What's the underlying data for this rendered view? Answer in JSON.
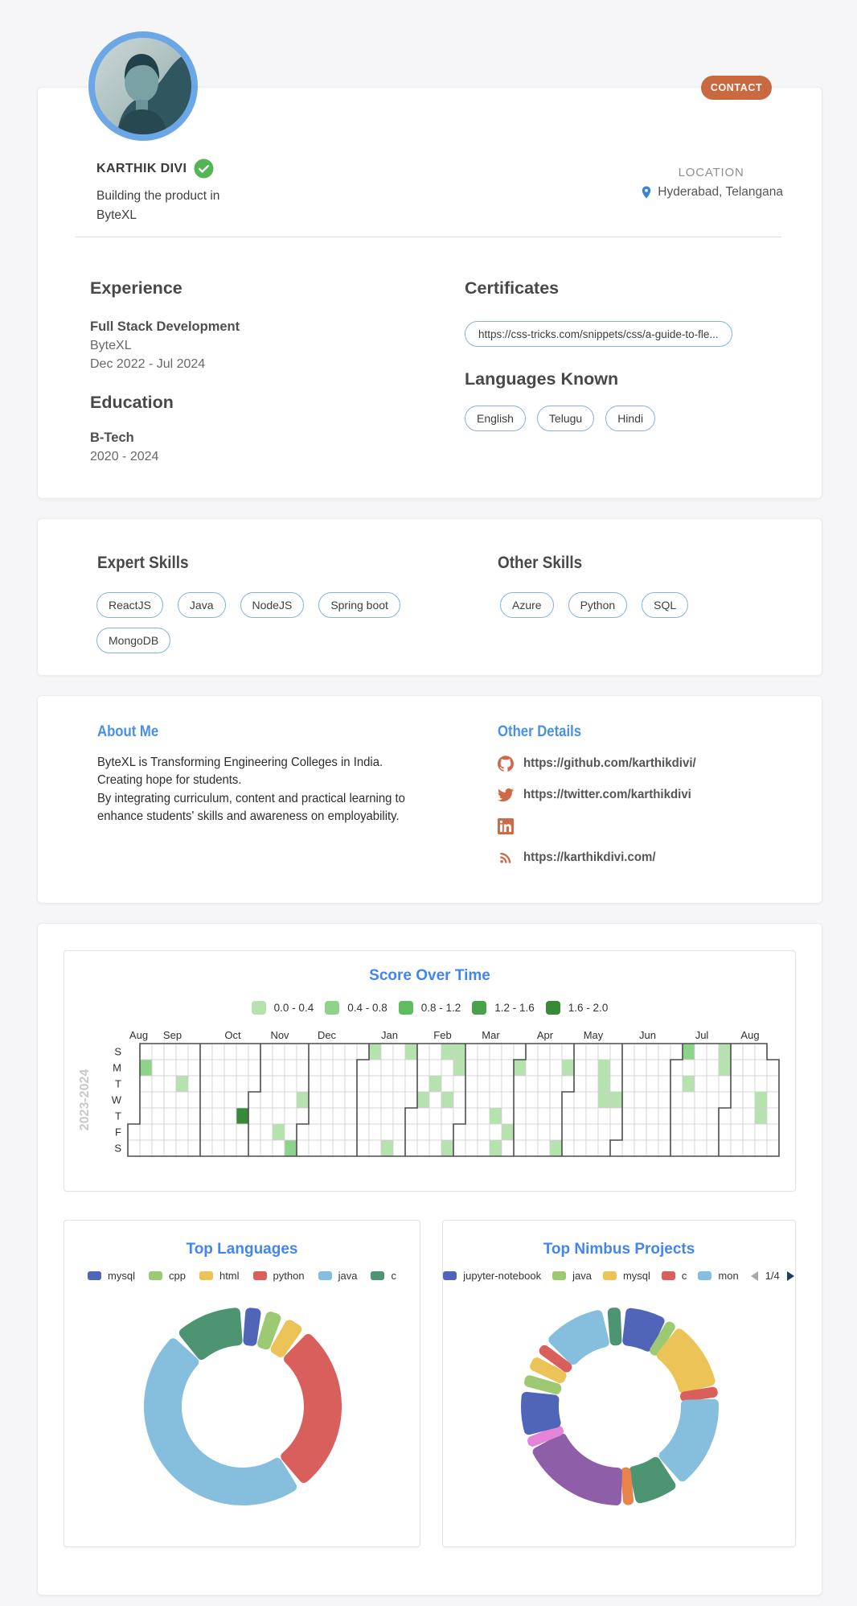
{
  "profile": {
    "name": "KARTHIK DIVI",
    "contact_label": "CONTACT",
    "tagline_line1": "Building the product in",
    "tagline_line2": "ByteXL",
    "location_label": "LOCATION",
    "location": "Hyderabad, Telangana"
  },
  "experience": {
    "title": "Experience",
    "role": "Full Stack Development",
    "company": "ByteXL",
    "period": "Dec 2022 - Jul 2024"
  },
  "education": {
    "title": "Education",
    "degree": "B-Tech",
    "period": "2020 - 2024"
  },
  "certificates": {
    "title": "Certificates",
    "url": "https://css-tricks.com/snippets/css/a-guide-to-fle..."
  },
  "languages": {
    "title": "Languages Known",
    "items": [
      "English",
      "Telugu",
      "Hindi"
    ]
  },
  "expert_skills": {
    "title": "Expert Skills",
    "items": [
      "ReactJS",
      "Java",
      "NodeJS",
      "Spring boot",
      "MongoDB"
    ]
  },
  "other_skills": {
    "title": "Other Skills",
    "items": [
      "Azure",
      "Python",
      "SQL"
    ]
  },
  "about": {
    "title": "About Me",
    "lines": [
      "ByteXL is Transforming Engineering Colleges in India.",
      "Creating hope for students.",
      "By integrating curriculum, content and practical learning to",
      "enhance students' skills and awareness on employability."
    ]
  },
  "other_details": {
    "title": "Other Details",
    "links": [
      {
        "icon": "github",
        "label": "https://github.com/karthikdivi/"
      },
      {
        "icon": "twitter",
        "label": "https://twitter.com/karthikdivi"
      },
      {
        "icon": "linkedin",
        "label": ""
      },
      {
        "icon": "rss",
        "label": "https://karthikdivi.com/"
      }
    ]
  },
  "chart_data": [
    {
      "type": "heatmap",
      "title": "Score Over Time",
      "year_label": "2023-2024",
      "legend": [
        {
          "label": "0.0 - 0.4",
          "color": "#b5e2af"
        },
        {
          "label": "0.4 - 0.8",
          "color": "#8ed38a"
        },
        {
          "label": "0.8 - 1.2",
          "color": "#5fbc5f"
        },
        {
          "label": "1.2 - 1.6",
          "color": "#48a348"
        },
        {
          "label": "1.6 - 2.0",
          "color": "#388938"
        }
      ],
      "day_labels": [
        "S",
        "M",
        "T",
        "W",
        "T",
        "F",
        "S"
      ],
      "weeks": 54,
      "month_labels": [
        {
          "label": "Aug",
          "week": 0.9
        },
        {
          "label": "Sep",
          "week": 3.7
        },
        {
          "label": "Oct",
          "week": 8.7
        },
        {
          "label": "Nov",
          "week": 12.6
        },
        {
          "label": "Dec",
          "week": 16.5
        },
        {
          "label": "Jan",
          "week": 21.7
        },
        {
          "label": "Feb",
          "week": 26.1
        },
        {
          "label": "Mar",
          "week": 30.1
        },
        {
          "label": "Apr",
          "week": 34.6
        },
        {
          "label": "May",
          "week": 38.6
        },
        {
          "label": "Jun",
          "week": 43.1
        },
        {
          "label": "Jul",
          "week": 47.6
        },
        {
          "label": "Aug",
          "week": 51.6
        }
      ],
      "month_boundaries": [
        [
          6,
          0
        ],
        [
          11,
          3
        ],
        [
          15,
          5
        ],
        [
          20,
          1
        ],
        [
          24,
          4
        ],
        [
          28,
          5
        ],
        [
          33,
          1
        ],
        [
          37,
          3
        ],
        [
          41,
          6
        ],
        [
          46,
          1
        ],
        [
          50,
          4
        ]
      ],
      "excluded_cells": [
        [
          0,
          0
        ],
        [
          0,
          1
        ],
        [
          0,
          2
        ],
        [
          0,
          3
        ],
        [
          0,
          4
        ],
        [
          53,
          0
        ]
      ],
      "cells": [
        [
          1,
          1,
          2
        ],
        [
          4,
          2,
          1
        ],
        [
          9,
          4,
          5
        ],
        [
          12,
          5,
          1
        ],
        [
          13,
          6,
          2
        ],
        [
          14,
          3,
          1
        ],
        [
          20,
          0,
          1
        ],
        [
          21,
          6,
          1
        ],
        [
          23,
          0,
          1
        ],
        [
          24,
          3,
          1
        ],
        [
          25,
          2,
          1
        ],
        [
          26,
          0,
          1
        ],
        [
          26,
          3,
          1
        ],
        [
          26,
          6,
          1
        ],
        [
          27,
          0,
          1
        ],
        [
          27,
          1,
          1
        ],
        [
          30,
          4,
          1
        ],
        [
          30,
          6,
          1
        ],
        [
          31,
          5,
          1
        ],
        [
          32,
          1,
          1
        ],
        [
          35,
          6,
          1
        ],
        [
          36,
          1,
          1
        ],
        [
          39,
          1,
          1
        ],
        [
          39,
          2,
          1
        ],
        [
          39,
          3,
          1
        ],
        [
          40,
          3,
          1
        ],
        [
          46,
          0,
          2
        ],
        [
          46,
          2,
          1
        ],
        [
          49,
          0,
          1
        ],
        [
          49,
          1,
          1
        ],
        [
          52,
          3,
          1
        ],
        [
          52,
          4,
          1
        ]
      ]
    },
    {
      "type": "donut",
      "title": "Top Languages",
      "series": [
        {
          "name": "mysql",
          "value": 3.5,
          "color": "#5065b8"
        },
        {
          "name": "cpp",
          "value": 3.5,
          "color": "#9dc973"
        },
        {
          "name": "html",
          "value": 4,
          "color": "#ecc356"
        },
        {
          "name": "python",
          "value": 29,
          "color": "#d95f5c"
        },
        {
          "name": "java",
          "value": 48,
          "color": "#85bfdd"
        },
        {
          "name": "c",
          "value": 12,
          "color": "#4c9472"
        }
      ]
    },
    {
      "type": "donut",
      "title": "Top Nimbus Projects",
      "pagination": "1/4",
      "legend_items": [
        {
          "name": "jupyter-notebook",
          "color": "#5065b8"
        },
        {
          "name": "java",
          "color": "#9dc973"
        },
        {
          "name": "mysql",
          "color": "#ecc356"
        },
        {
          "name": "c",
          "color": "#d95f5c"
        },
        {
          "name": "mon",
          "color": "#85bfdd"
        }
      ],
      "segments": [
        {
          "value": 7.5,
          "color": "#5065b8"
        },
        {
          "value": 1.4,
          "color": "#9dc973"
        },
        {
          "value": 12,
          "color": "#ecc356"
        },
        {
          "value": 1.4,
          "color": "#d95f5c"
        },
        {
          "value": 16,
          "color": "#85bfdd"
        },
        {
          "value": 8,
          "color": "#4c9472"
        },
        {
          "value": 1.5,
          "color": "#e8834e"
        },
        {
          "value": 18.5,
          "color": "#8e5fa8"
        },
        {
          "value": 1.5,
          "color": "#e583d8"
        },
        {
          "value": 8,
          "color": "#5065b8"
        },
        {
          "value": 2.8,
          "color": "#9dc973"
        },
        {
          "value": 3.2,
          "color": "#ecc356"
        },
        {
          "value": 2.2,
          "color": "#d95f5c"
        },
        {
          "value": 11,
          "color": "#85bfdd"
        },
        {
          "value": 3,
          "color": "#4c9472"
        }
      ]
    }
  ]
}
